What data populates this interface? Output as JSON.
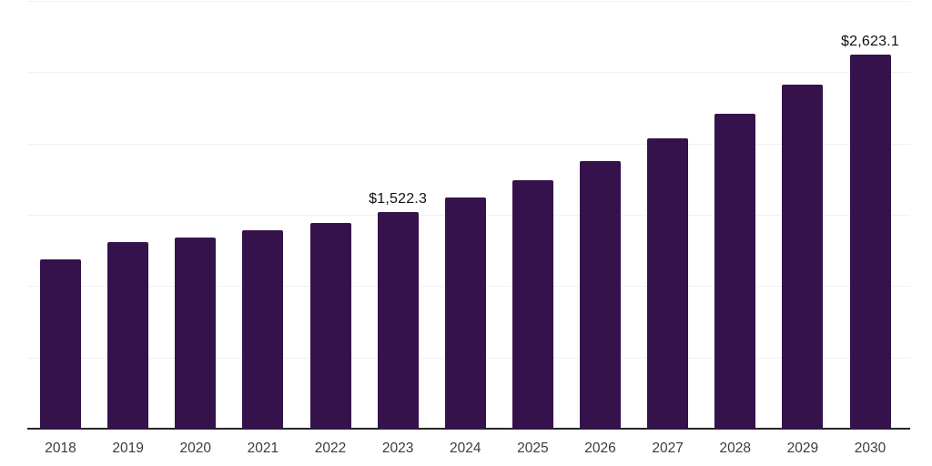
{
  "chart_data": {
    "type": "bar",
    "title": "",
    "xlabel": "",
    "ylabel": "",
    "categories": [
      "2018",
      "2019",
      "2020",
      "2021",
      "2022",
      "2023",
      "2024",
      "2025",
      "2026",
      "2027",
      "2028",
      "2029",
      "2030"
    ],
    "values": [
      1185,
      1310,
      1341,
      1389,
      1442,
      1522.3,
      1622,
      1743,
      1875,
      2039,
      2211,
      2413,
      2623.1
    ],
    "value_labels": {
      "2023": "$1,522.3",
      "2030": "$2,623.1"
    },
    "ylim": [
      0,
      3000
    ],
    "gridline_values": [
      500,
      1000,
      1500,
      2000,
      2500,
      3000
    ],
    "grid": "horizontal",
    "legend_position": "none",
    "y_tick_labels_visible": false,
    "colors": {
      "bar": "#35124B",
      "axis": "#262626",
      "gridline": "#f1f1f1",
      "value_label": "#111111",
      "tick_label": "#3c3c3c"
    }
  }
}
